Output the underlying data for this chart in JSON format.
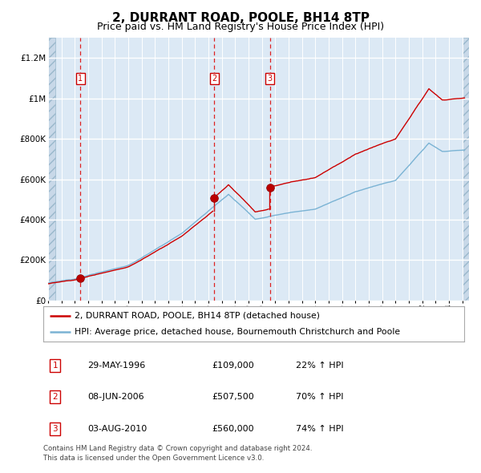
{
  "title": "2, DURRANT ROAD, POOLE, BH14 8TP",
  "subtitle": "Price paid vs. HM Land Registry's House Price Index (HPI)",
  "title_fontsize": 11,
  "subtitle_fontsize": 9,
  "hpi_color": "#7ab3d4",
  "price_color": "#cc0000",
  "bg_color": "#dce9f5",
  "grid_color": "#ffffff",
  "dashed_color": "#dd2222",
  "ylim": [
    0,
    1300000
  ],
  "yticks": [
    0,
    200000,
    400000,
    600000,
    800000,
    1000000,
    1200000
  ],
  "ytick_labels": [
    "£0",
    "£200K",
    "£400K",
    "£600K",
    "£800K",
    "£1M",
    "£1.2M"
  ],
  "xmin": 1994,
  "xmax": 2025.5,
  "sales": [
    {
      "date_label": "29-MAY-1996",
      "year": 1996.42,
      "price": 109000,
      "hpi_pct": "22% ↑ HPI",
      "num": 1
    },
    {
      "date_label": "08-JUN-2006",
      "year": 2006.44,
      "price": 507500,
      "hpi_pct": "70% ↑ HPI",
      "num": 2
    },
    {
      "date_label": "03-AUG-2010",
      "year": 2010.59,
      "price": 560000,
      "hpi_pct": "74% ↑ HPI",
      "num": 3
    }
  ],
  "legend_house_label": "2, DURRANT ROAD, POOLE, BH14 8TP (detached house)",
  "legend_hpi_label": "HPI: Average price, detached house, Bournemouth Christchurch and Poole",
  "footnote": "Contains HM Land Registry data © Crown copyright and database right 2024.\nThis data is licensed under the Open Government Licence v3.0."
}
